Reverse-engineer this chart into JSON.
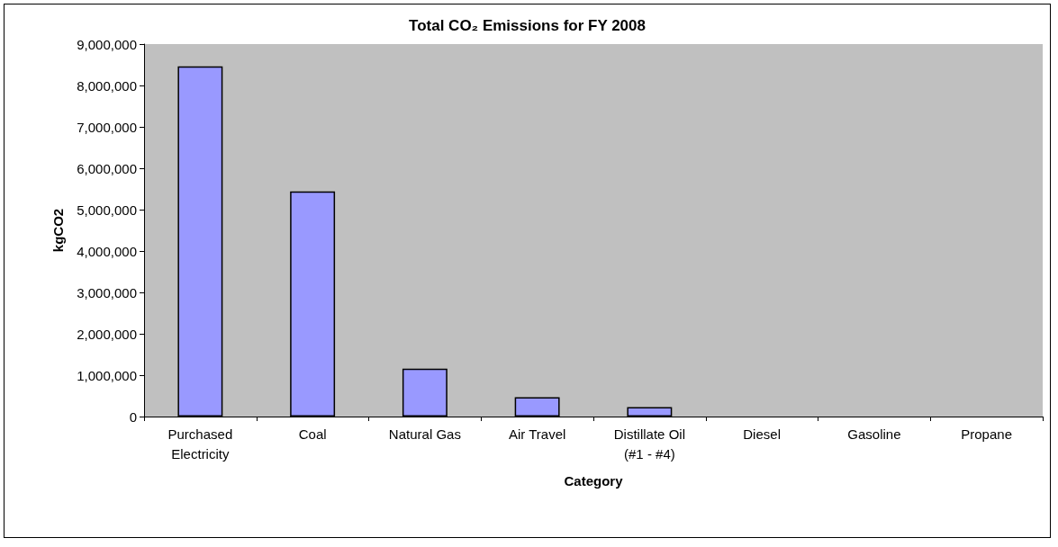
{
  "chart_data": {
    "type": "bar",
    "title": "Total CO₂ Emissions for FY 2008",
    "xlabel": "Category",
    "ylabel": "kgCO2",
    "categories": [
      "Purchased Electricity",
      "Coal",
      "Natural Gas",
      "Air Travel",
      "Distillate Oil (#1 - #4)",
      "Diesel",
      "Gasoline",
      "Propane"
    ],
    "values": [
      8460000,
      5440000,
      1160000,
      470000,
      230000,
      0,
      0,
      0
    ],
    "color": "#9999ff",
    "ylim": [
      0,
      9000000
    ],
    "yticks": [
      0,
      {
        "value": 1000000,
        "label": "1,000,000"
      },
      {
        "value": 2000000,
        "label": "2,000,000"
      },
      {
        "value": 3000000,
        "label": "3,000,000"
      },
      {
        "value": 4000000,
        "label": "4,000,000"
      },
      {
        "value": 5000000,
        "label": "5,000,000"
      },
      {
        "value": 6000000,
        "label": "6,000,000"
      },
      {
        "value": 7000000,
        "label": "7,000,000"
      },
      {
        "value": 8000000,
        "label": "8,000,000"
      },
      {
        "value": 9000000,
        "label": "9,000,000"
      }
    ],
    "grid": false
  }
}
